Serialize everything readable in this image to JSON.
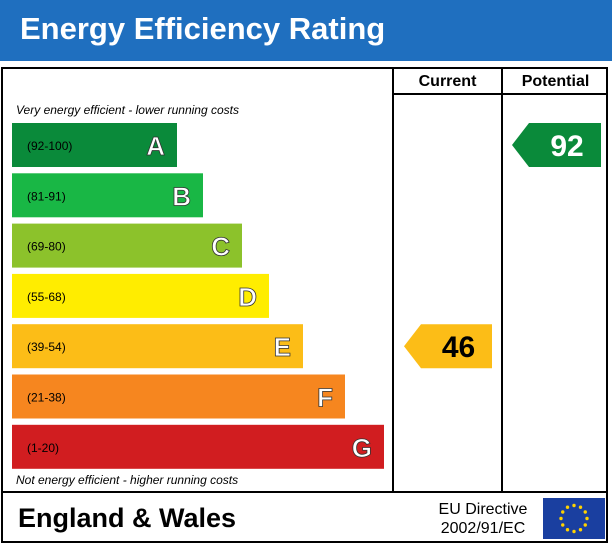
{
  "title": "Energy Efficiency Rating",
  "columns": {
    "current": "Current",
    "potential": "Potential"
  },
  "top_note": "Very energy efficient - lower running costs",
  "bottom_note": "Not energy efficient - higher running costs",
  "chart_data": {
    "type": "bar",
    "bands": [
      {
        "letter": "A",
        "range": "(92-100)",
        "color": "#0a8a3a"
      },
      {
        "letter": "B",
        "range": "(81-91)",
        "color": "#19b745"
      },
      {
        "letter": "C",
        "range": "(69-80)",
        "color": "#8cc22b"
      },
      {
        "letter": "D",
        "range": "(55-68)",
        "color": "#ffed00"
      },
      {
        "letter": "E",
        "range": "(39-54)",
        "color": "#fcbd17"
      },
      {
        "letter": "F",
        "range": "(21-38)",
        "color": "#f6861f"
      },
      {
        "letter": "G",
        "range": "(1-20)",
        "color": "#d11d20"
      }
    ],
    "current": {
      "value": 46,
      "band": "E"
    },
    "potential": {
      "value": 92,
      "band": "A"
    }
  },
  "footer": {
    "region": "England & Wales",
    "directive_line1": "EU Directive",
    "directive_line2": "2002/91/EC",
    "flag_icon": "eu-flag-icon"
  }
}
